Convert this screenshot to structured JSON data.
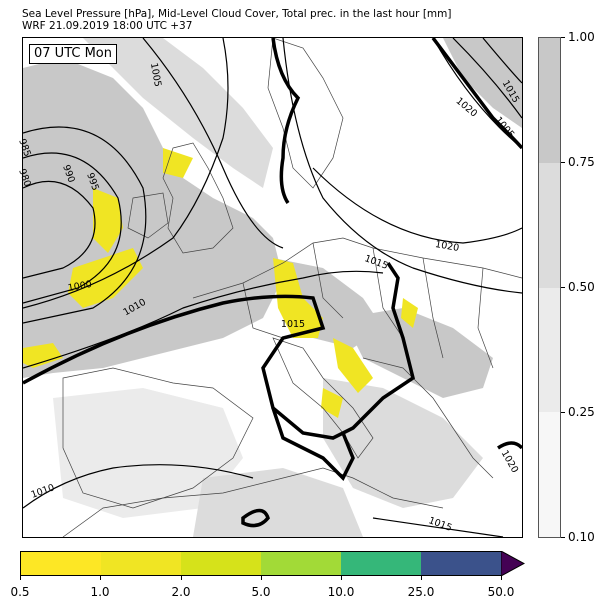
{
  "title": {
    "line1": "Sea Level Pressure [hPa], Mid-Level Cloud Cover, Total prec. in the last hour [mm]",
    "line2": "WRF 21.09.2019 18:00 UTC +37"
  },
  "time_label": "07 UTC Mon",
  "isobar_labels": [
    "1005",
    "985",
    "980",
    "990",
    "995",
    "1000",
    "1010",
    "1015",
    "1020",
    "1015",
    "1020",
    "1005",
    "1010",
    "1015",
    "1020",
    "1015"
  ],
  "cloud_colorbar": {
    "labels": [
      "1.00",
      "0.75",
      "0.50",
      "0.25",
      "0.10"
    ],
    "colors": [
      "#c8c8c8",
      "#dcdcdc",
      "#ebebeb",
      "#f7f7f7"
    ]
  },
  "precip_colorbar": {
    "labels": [
      "0.5",
      "1.0",
      "2.0",
      "5.0",
      "10.0",
      "25.0",
      "50.0"
    ],
    "colors": [
      "#fde725",
      "#f0e523",
      "#d6e21a",
      "#a2da37",
      "#35b779",
      "#3b528b",
      "#440154"
    ]
  },
  "colors": {
    "land_border": "#444444",
    "isobar": "#000000",
    "cloud_heavy": "#c8c8c8",
    "cloud_mid": "#dcdcdc",
    "precip": "#f0e523"
  }
}
